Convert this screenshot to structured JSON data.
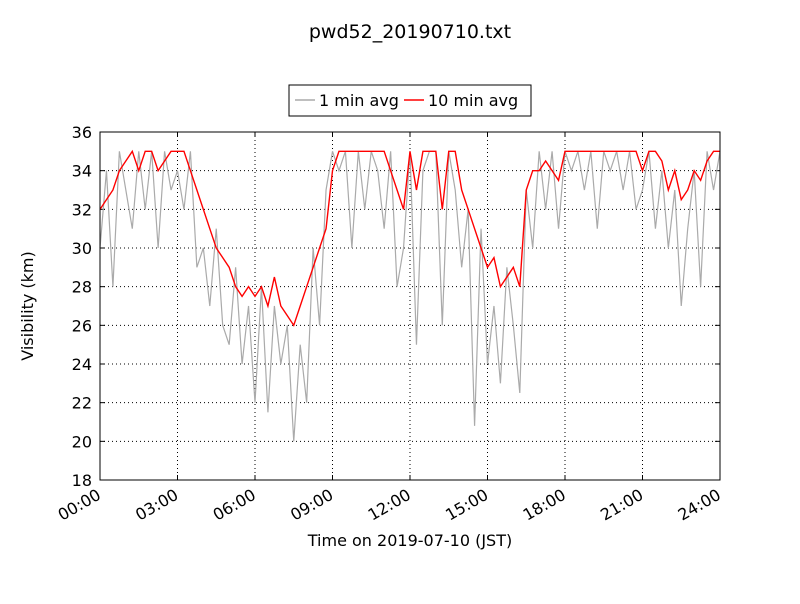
{
  "chart_data": {
    "type": "line",
    "title": "pwd52_20190710.txt",
    "x_label": "Time on 2019-07-10 (JST)",
    "y_label": "Visibility (km)",
    "x": [
      0,
      0.25,
      0.5,
      0.75,
      1,
      1.25,
      1.5,
      1.75,
      2,
      2.25,
      2.5,
      2.75,
      3,
      3.25,
      3.5,
      3.75,
      4,
      4.25,
      4.5,
      4.75,
      5,
      5.25,
      5.5,
      5.75,
      6,
      6.25,
      6.5,
      6.75,
      7,
      7.25,
      7.5,
      7.75,
      8,
      8.25,
      8.5,
      8.75,
      9,
      9.25,
      9.5,
      9.75,
      10,
      10.25,
      10.5,
      10.75,
      11,
      11.25,
      11.5,
      11.75,
      12,
      12.25,
      12.5,
      12.75,
      13,
      13.25,
      13.5,
      13.75,
      14,
      14.25,
      14.5,
      14.75,
      15,
      15.25,
      15.5,
      15.75,
      16,
      16.25,
      16.5,
      16.75,
      17,
      17.25,
      17.5,
      17.75,
      18,
      18.25,
      18.5,
      18.75,
      19,
      19.25,
      19.5,
      19.75,
      20,
      20.25,
      20.5,
      20.75,
      21,
      21.25,
      21.5,
      21.75,
      22,
      22.25,
      22.5,
      22.75,
      23,
      23.25,
      23.5,
      23.75,
      24
    ],
    "series": [
      {
        "name": "1 min avg",
        "color": "#aaaaaa",
        "values": [
          30,
          34,
          28,
          35,
          33,
          31,
          35,
          32,
          35,
          30,
          35,
          33,
          34,
          32,
          35,
          29,
          30,
          27,
          31,
          26,
          25,
          29,
          24,
          27,
          22,
          28,
          21.5,
          27,
          24,
          26,
          20,
          25,
          22,
          30,
          26,
          33,
          35,
          34,
          35,
          30,
          35,
          32,
          35,
          34,
          31,
          35,
          28,
          30,
          35,
          25,
          34,
          35,
          35,
          26,
          35,
          33,
          29,
          32,
          20.8,
          31,
          24,
          27,
          23,
          29,
          26,
          22.5,
          33,
          30,
          35,
          32,
          35,
          31,
          35,
          34,
          35,
          33,
          35,
          31,
          35,
          34,
          35,
          33,
          35,
          32,
          33,
          35,
          31,
          34,
          30,
          33,
          27,
          31,
          34,
          28,
          35,
          33,
          35
        ]
      },
      {
        "name": "10 min avg",
        "color": "#ff0000",
        "values": [
          32,
          32.5,
          33,
          34,
          34.5,
          35,
          34,
          35,
          35,
          34,
          34.5,
          35,
          35,
          35,
          34,
          33,
          32,
          31,
          30,
          29.5,
          29,
          28,
          27.5,
          28,
          27.5,
          28,
          27,
          28.5,
          27,
          26.5,
          26,
          27,
          28,
          29,
          30,
          31,
          34,
          35,
          35,
          35,
          35,
          35,
          35,
          35,
          35,
          34,
          33,
          32,
          35,
          33,
          35,
          35,
          35,
          32,
          35,
          35,
          33,
          32,
          31,
          30,
          29,
          29.5,
          28,
          28.5,
          29,
          28,
          33,
          34,
          34,
          34.5,
          34,
          33.5,
          35,
          35,
          35,
          35,
          35,
          35,
          35,
          35,
          35,
          35,
          35,
          35,
          34,
          35,
          35,
          34.5,
          33,
          34,
          32.5,
          33,
          34,
          33.5,
          34.5,
          35,
          35
        ]
      }
    ],
    "xlim": [
      0,
      24
    ],
    "xticks": [
      {
        "value": 0,
        "label": "00:00"
      },
      {
        "value": 3,
        "label": "03:00"
      },
      {
        "value": 6,
        "label": "06:00"
      },
      {
        "value": 9,
        "label": "09:00"
      },
      {
        "value": 12,
        "label": "12:00"
      },
      {
        "value": 15,
        "label": "15:00"
      },
      {
        "value": 18,
        "label": "18:00"
      },
      {
        "value": 21,
        "label": "21:00"
      },
      {
        "value": 24,
        "label": "24:00"
      }
    ],
    "ylim": [
      18,
      36
    ],
    "yticks": [
      18,
      20,
      22,
      24,
      26,
      28,
      30,
      32,
      34,
      36
    ],
    "grid": true,
    "legend": "upper center"
  }
}
